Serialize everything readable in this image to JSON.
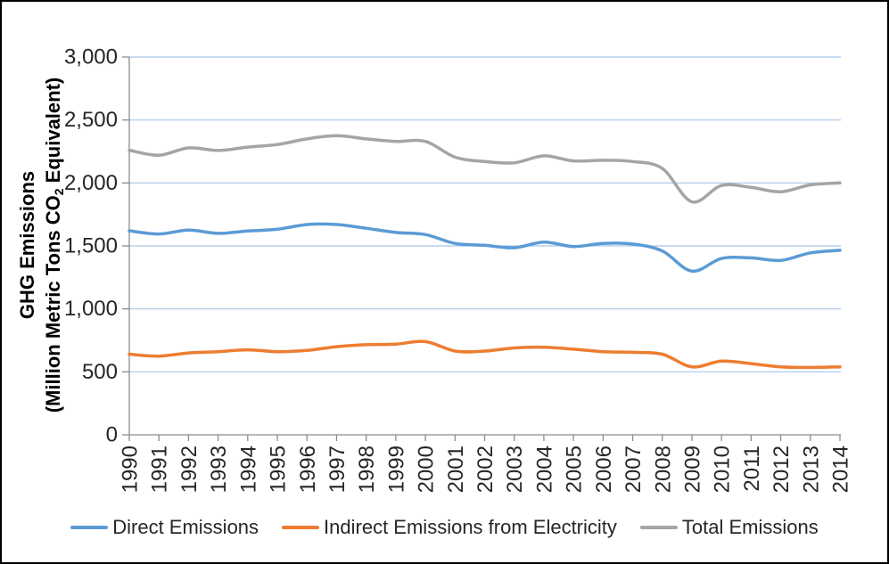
{
  "chart_data": {
    "type": "line",
    "title": "",
    "ylabel_line1": "GHG Emissions",
    "ylabel_line2_prefix": "(Million Metric Tons CO",
    "ylabel_line2_sub": "2",
    "ylabel_line2_suffix": " Equivalent)",
    "xlabel": "",
    "ylim": [
      0,
      3000
    ],
    "y_ticks": [
      0,
      500,
      1000,
      1500,
      2000,
      2500,
      3000
    ],
    "y_tick_labels": [
      "0",
      "500",
      "1,000",
      "1,500",
      "2,000",
      "2,500",
      "3,000"
    ],
    "x_tick_labels": [
      "1990",
      "1991",
      "1992",
      "1993",
      "1994",
      "1995",
      "1996",
      "1997",
      "1998",
      "1999",
      "2000",
      "2001",
      "2002",
      "2003",
      "2004",
      "2005",
      "2006",
      "2007",
      "2008",
      "2009",
      "2010",
      "2011",
      "2012",
      "2013",
      "2014"
    ],
    "grid": true,
    "smoothed_lines": true,
    "legend_position": "bottom",
    "series": [
      {
        "name": "Direct Emissions",
        "color": "#5B9BD5",
        "values": [
          1620,
          1595,
          1625,
          1600,
          1618,
          1632,
          1670,
          1670,
          1640,
          1607,
          1590,
          1520,
          1505,
          1485,
          1530,
          1495,
          1520,
          1515,
          1460,
          1300,
          1400,
          1405,
          1385,
          1445,
          1465
        ]
      },
      {
        "name": "Indirect Emissions from Electricity",
        "color": "#ED7D31",
        "values": [
          640,
          625,
          650,
          660,
          675,
          660,
          670,
          700,
          715,
          720,
          740,
          665,
          665,
          690,
          695,
          680,
          660,
          655,
          640,
          540,
          585,
          565,
          540,
          535,
          540
        ]
      },
      {
        "name": "Total Emissions",
        "color": "#A5A5A5",
        "values": [
          2260,
          2220,
          2278,
          2258,
          2285,
          2305,
          2350,
          2375,
          2350,
          2330,
          2330,
          2205,
          2170,
          2160,
          2215,
          2175,
          2180,
          2170,
          2115,
          1850,
          1980,
          1965,
          1930,
          1985,
          2000
        ]
      }
    ],
    "colors": {
      "gridline": "#A9C6E8",
      "axis": "#8C8C8C",
      "tick_text": "#262626",
      "title_text": "#000000",
      "background": "#FFFFFF",
      "frame_border": "#000000"
    }
  }
}
